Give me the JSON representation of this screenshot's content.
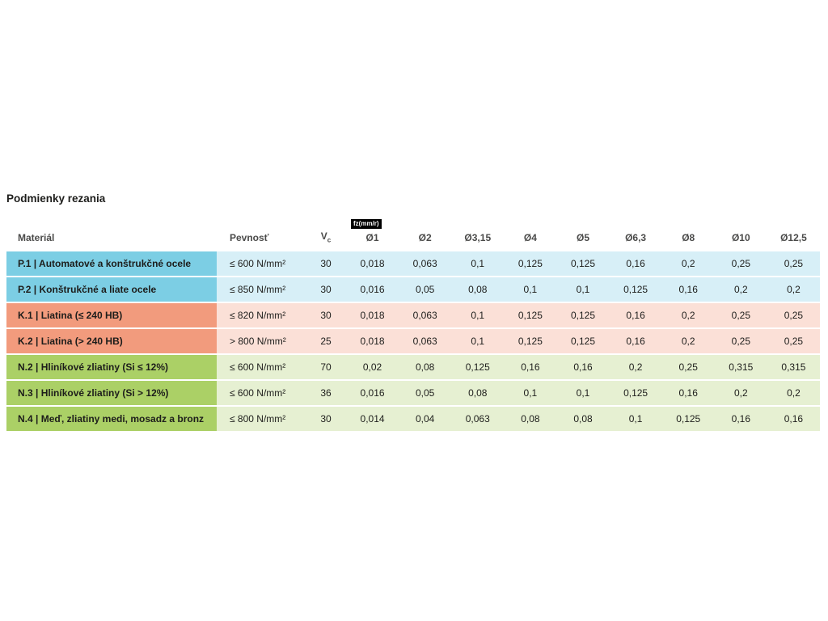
{
  "page": {
    "title": "Podmienky rezania"
  },
  "table": {
    "badge": "fz(mm/r)",
    "headers": {
      "material": "Materiál",
      "strength": "Pevnosť",
      "vc_main": "V",
      "vc_sub": "c",
      "diameters": [
        "Ø1",
        "Ø2",
        "Ø3,15",
        "Ø4",
        "Ø5",
        "Ø6,3",
        "Ø8",
        "Ø10",
        "Ø12,5"
      ]
    },
    "colors": {
      "steel_header": "#7ccee4",
      "steel_body": "#d7eff7",
      "cast_iron_header": "#f29b7d",
      "cast_iron_body": "#fbe0d7",
      "nonferrous_header": "#abd066",
      "nonferrous_body": "#e6f0d2",
      "badge_bg": "#000000",
      "badge_text": "#ffffff"
    },
    "rows": [
      {
        "group": "steel",
        "material": "P.1 | Automatové a konštrukčné ocele",
        "strength": "≤ 600 N/mm²",
        "vc": "30",
        "values": [
          "0,018",
          "0,063",
          "0,1",
          "0,125",
          "0,125",
          "0,16",
          "0,2",
          "0,25",
          "0,25"
        ]
      },
      {
        "group": "steel",
        "material": "P.2 | Konštrukčné a liate ocele",
        "strength": "≤ 850 N/mm²",
        "vc": "30",
        "values": [
          "0,016",
          "0,05",
          "0,08",
          "0,1",
          "0,1",
          "0,125",
          "0,16",
          "0,2",
          "0,2"
        ]
      },
      {
        "group": "cast",
        "material": "K.1 | Liatina (≤ 240 HB)",
        "strength": "≤ 820 N/mm²",
        "vc": "30",
        "values": [
          "0,018",
          "0,063",
          "0,1",
          "0,125",
          "0,125",
          "0,16",
          "0,2",
          "0,25",
          "0,25"
        ]
      },
      {
        "group": "cast",
        "material": "K.2 | Liatina (> 240 HB)",
        "strength": "> 800 N/mm²",
        "vc": "25",
        "values": [
          "0,018",
          "0,063",
          "0,1",
          "0,125",
          "0,125",
          "0,16",
          "0,2",
          "0,25",
          "0,25"
        ]
      },
      {
        "group": "nonfer",
        "material": "N.2 | Hliníkové zliatiny (Si ≤ 12%)",
        "strength": "≤ 600 N/mm²",
        "vc": "70",
        "values": [
          "0,02",
          "0,08",
          "0,125",
          "0,16",
          "0,16",
          "0,2",
          "0,25",
          "0,315",
          "0,315"
        ]
      },
      {
        "group": "nonfer",
        "material": "N.3 | Hliníkové zliatiny (Si > 12%)",
        "strength": "≤ 600 N/mm²",
        "vc": "36",
        "values": [
          "0,016",
          "0,05",
          "0,08",
          "0,1",
          "0,1",
          "0,125",
          "0,16",
          "0,2",
          "0,2"
        ]
      },
      {
        "group": "nonfer",
        "material": "N.4 | Meď, zliatiny medi, mosadz a bronz",
        "strength": "≤ 800 N/mm²",
        "vc": "30",
        "values": [
          "0,014",
          "0,04",
          "0,063",
          "0,08",
          "0,08",
          "0,1",
          "0,125",
          "0,16",
          "0,16"
        ]
      }
    ]
  }
}
